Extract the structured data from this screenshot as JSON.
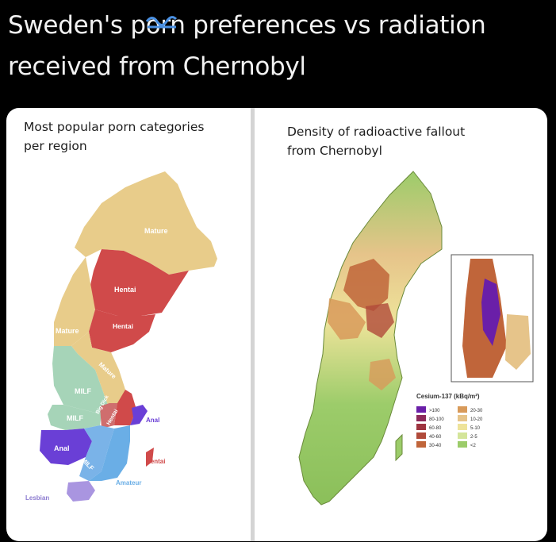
{
  "headline": {
    "part1": "Sweden's p",
    "scribbled": "orn",
    "part2": " preferences vs radiation",
    "line2": "received from Chernobyl"
  },
  "left_panel": {
    "title_line1": "Most popular porn categories",
    "title_line2": "per region",
    "region_labels": {
      "mature_north": "Mature",
      "hentai_1": "Hentai",
      "hentai_2": "Hentai",
      "mature_west": "Mature",
      "mature_diag": "Mature",
      "milf_1": "MILF",
      "milf_2": "MILF",
      "big_dick": "Big Dick",
      "hentai_diag": "Hentai",
      "anal_east": "Anal",
      "anal_west": "Anal",
      "milf_diag": "MILF",
      "hentai_gotland": "Hentai",
      "amateur": "Amateur",
      "lesbian": "Lesbian"
    }
  },
  "right_panel": {
    "title_line1": "Density of radioactive fallout",
    "title_line2": "from Chernobyl",
    "legend": {
      "title": "Cesium-137 (kBq/m²)",
      "items_left": [
        ">100",
        "80-100",
        "60-80",
        "40-60",
        "30-40"
      ],
      "items_right": [
        "20-30",
        "10-20",
        "5-10",
        "2-5",
        "<2"
      ],
      "colors_left": [
        "#6a1fa8",
        "#8c2a5a",
        "#9e3440",
        "#b04a3a",
        "#c0653a"
      ],
      "colors_right": [
        "#d89a5a",
        "#e6c48a",
        "#eee39a",
        "#d4e59a",
        "#9ccc6a"
      ]
    }
  },
  "colors": {
    "mature": "#e8cc8a",
    "hentai": "#d04a4a",
    "milf": "#a6d4b8",
    "anal": "#6a3fd6",
    "amateur": "#6aaee6",
    "lesbian": "#a995e0",
    "fallout_low": "#9ccc6a",
    "fallout_mid": "#eee39a",
    "fallout_high": "#c0653a"
  }
}
